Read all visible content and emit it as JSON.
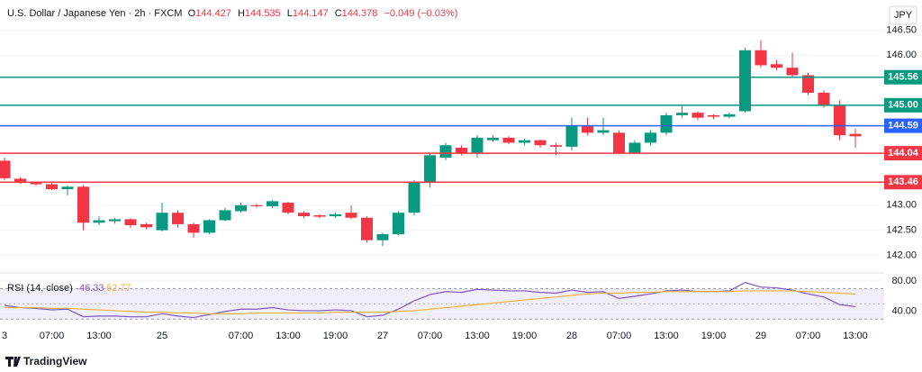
{
  "header": {
    "symbol": "U.S. Dollar / Japanese Yen · 2h · FXCM",
    "ohlc": [
      {
        "key": "O",
        "text": "144.427"
      },
      {
        "key": "H",
        "text": "144.535"
      },
      {
        "key": "L",
        "text": "144.147"
      },
      {
        "key": "C",
        "text": "144.378"
      }
    ],
    "change": "−0.049 (−0.03%)",
    "currency": "JPY"
  },
  "footer": {
    "brand": "TradingView"
  },
  "chart_data": [
    {
      "type": "candlestick",
      "categories": [
        "3",
        null,
        null,
        "07:00",
        null,
        null,
        "13:00",
        null,
        null,
        null,
        "25",
        null,
        null,
        null,
        null,
        "07:00",
        null,
        null,
        "13:00",
        null,
        null,
        "19:00",
        null,
        null,
        "27",
        null,
        null,
        "07:00",
        null,
        null,
        "13:00",
        null,
        null,
        "19:00",
        null,
        null,
        "28",
        null,
        null,
        "07:00",
        null,
        null,
        "13:00",
        null,
        null,
        "19:00",
        null,
        null,
        "29",
        null,
        null,
        "07:00",
        null,
        null,
        "13:00"
      ],
      "open": [
        143.89,
        143.53,
        143.45,
        143.42,
        143.32,
        143.37,
        142.65,
        142.68,
        142.72,
        142.62,
        142.5,
        142.85,
        142.62,
        142.45,
        142.7,
        142.88,
        143.0,
        142.98,
        143.05,
        142.85,
        142.8,
        142.78,
        142.85,
        142.75,
        142.3,
        142.42,
        142.85,
        143.45,
        143.95,
        144.15,
        144.05,
        144.3,
        144.35,
        144.25,
        144.3,
        144.2,
        144.17,
        144.6,
        144.45,
        144.45,
        144.05,
        144.25,
        144.45,
        144.8,
        144.85,
        144.8,
        144.77,
        144.88,
        146.1,
        145.82,
        145.75,
        145.6,
        145.25,
        145.0,
        144.427
      ],
      "high": [
        143.95,
        143.56,
        143.47,
        143.44,
        143.4,
        143.4,
        142.78,
        142.75,
        142.74,
        142.65,
        143.05,
        142.9,
        142.65,
        142.72,
        142.95,
        143.05,
        143.03,
        143.1,
        143.07,
        142.88,
        142.82,
        142.85,
        143.0,
        142.78,
        142.45,
        142.88,
        143.5,
        144.05,
        144.25,
        144.2,
        144.4,
        144.4,
        144.38,
        144.33,
        144.32,
        144.25,
        144.75,
        144.75,
        144.75,
        144.5,
        144.3,
        144.5,
        144.85,
        145.0,
        144.88,
        144.82,
        144.85,
        146.15,
        146.3,
        145.9,
        146.05,
        145.65,
        145.3,
        145.1,
        144.535
      ],
      "low": [
        143.5,
        143.43,
        143.38,
        143.3,
        143.2,
        142.5,
        142.6,
        142.63,
        142.55,
        142.52,
        142.48,
        142.55,
        142.35,
        142.42,
        142.68,
        142.85,
        142.95,
        142.95,
        142.82,
        142.74,
        142.74,
        142.75,
        142.72,
        142.25,
        142.18,
        142.4,
        142.8,
        143.35,
        143.9,
        144.0,
        143.95,
        144.27,
        144.22,
        144.2,
        144.15,
        144.0,
        144.1,
        144.4,
        144.4,
        144.02,
        144.02,
        144.2,
        144.4,
        144.75,
        144.7,
        144.72,
        144.74,
        144.85,
        145.75,
        145.7,
        145.55,
        145.2,
        144.95,
        144.3,
        144.147
      ],
      "close": [
        143.54,
        143.46,
        143.42,
        143.32,
        143.37,
        142.65,
        142.7,
        142.72,
        142.6,
        142.56,
        142.85,
        142.62,
        142.45,
        142.7,
        142.9,
        143.0,
        142.98,
        143.08,
        142.85,
        142.78,
        142.77,
        142.82,
        142.75,
        142.3,
        142.42,
        142.85,
        143.45,
        144.0,
        144.2,
        144.05,
        144.35,
        144.35,
        144.25,
        144.3,
        144.2,
        144.17,
        144.6,
        144.45,
        144.5,
        144.05,
        144.25,
        144.45,
        144.8,
        144.85,
        144.75,
        144.77,
        144.82,
        146.1,
        145.8,
        145.75,
        145.6,
        145.25,
        145.0,
        144.4,
        144.378
      ],
      "up_color": "#089981",
      "down_color": "#f23645",
      "ylim": [
        141.7,
        146.6
      ],
      "yticks": [
        {
          "value": 142,
          "label": "142.00"
        },
        {
          "value": 142.5,
          "label": "142.50"
        },
        {
          "value": 143,
          "label": "143.00"
        },
        {
          "value": 146,
          "label": "146.00"
        },
        {
          "value": 146.5,
          "label": "146.50"
        }
      ],
      "grid": true,
      "levels": [
        {
          "value": 145.56,
          "color": "#089981"
        },
        {
          "value": {
            "value": 145,
            "label": "145.00"
          },
          "color": "#089981"
        },
        {
          "value": 144.59,
          "color": "#2962ff"
        },
        {
          "value": 144.04,
          "color": "#f23645"
        },
        {
          "value": 143.46,
          "color": "#f23645"
        }
      ]
    },
    {
      "type": "line",
      "title": "RSI (14, close)",
      "series": [
        {
          "name": "46.33",
          "color": "#7e57c2",
          "values": [
            48,
            45,
            44,
            42,
            43,
            33,
            34,
            34,
            33,
            33,
            37,
            34,
            32,
            36,
            40,
            43,
            43,
            45,
            42,
            41,
            41,
            42,
            41,
            33,
            35,
            43,
            54,
            62,
            66,
            65,
            69,
            68,
            67,
            67,
            65,
            64,
            68,
            65,
            66,
            57,
            60,
            63,
            67,
            68,
            66,
            66,
            67,
            78,
            72,
            71,
            68,
            63,
            59,
            49,
            46.33
          ]
        },
        {
          "name": "62.77",
          "color": "#f2b33d",
          "values": [
            45,
            45,
            45,
            44,
            44,
            43,
            42,
            41,
            40,
            39,
            39,
            38,
            38,
            37,
            37,
            37,
            38,
            38,
            38,
            38,
            38,
            39,
            39,
            39,
            39,
            40,
            41,
            43,
            45,
            47,
            49,
            51,
            53,
            55,
            57,
            59,
            61,
            63,
            64,
            64,
            65,
            65,
            66,
            66,
            66,
            66,
            66,
            67,
            67,
            67,
            67,
            66,
            65,
            64,
            62.77
          ]
        }
      ],
      "ylim": [
        22,
        87
      ],
      "yticks": [
        {
          "value": 80,
          "label": "80.00"
        },
        {
          "value": 40,
          "label": "40.00"
        }
      ],
      "band": [
        30,
        70
      ],
      "midline": 50
    }
  ]
}
